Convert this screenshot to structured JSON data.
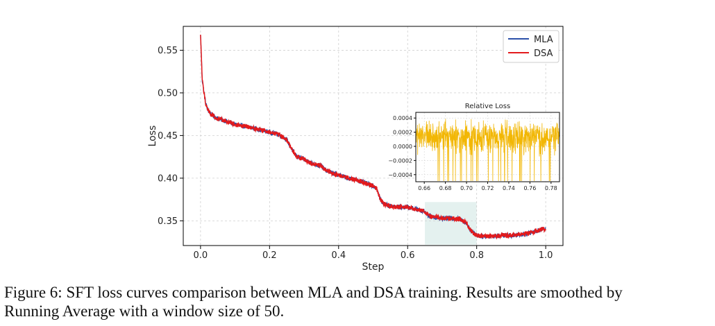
{
  "caption": {
    "line1": "Figure 6: SFT loss curves comparison between MLA and DSA training. Results are smoothed by",
    "line2": "Running Average with a window size of 50."
  },
  "chart_data": [
    {
      "type": "line",
      "title": "",
      "xlabel": "Step",
      "ylabel": "Loss",
      "xlim": [
        -0.05,
        1.05
      ],
      "ylim": [
        0.321,
        0.578
      ],
      "xticks": [
        0.0,
        0.2,
        0.4,
        0.6,
        0.8,
        1.0
      ],
      "xtick_labels": [
        "0.0",
        "0.2",
        "0.4",
        "0.6",
        "0.8",
        "1.0"
      ],
      "yticks": [
        0.35,
        0.4,
        0.45,
        0.5,
        0.55
      ],
      "ytick_labels": [
        "0.35",
        "0.40",
        "0.45",
        "0.50",
        "0.55"
      ],
      "grid": true,
      "legend_position": "top-right",
      "highlight_region": {
        "x": [
          0.65,
          0.8
        ],
        "y": [
          0.322,
          0.372
        ],
        "color": "#e4f1ef"
      },
      "series": [
        {
          "name": "MLA",
          "color": "#2b4fa8",
          "x": [
            0.0,
            0.002,
            0.005,
            0.01,
            0.015,
            0.02,
            0.03,
            0.05,
            0.08,
            0.1,
            0.15,
            0.2,
            0.22,
            0.24,
            0.25,
            0.26,
            0.27,
            0.28,
            0.3,
            0.32,
            0.35,
            0.36,
            0.38,
            0.4,
            0.42,
            0.45,
            0.48,
            0.5,
            0.51,
            0.52,
            0.53,
            0.55,
            0.58,
            0.6,
            0.62,
            0.65,
            0.66,
            0.68,
            0.7,
            0.72,
            0.75,
            0.77,
            0.78,
            0.79,
            0.8,
            0.82,
            0.85,
            0.88,
            0.9,
            0.92,
            0.95,
            0.98,
            1.0
          ],
          "values": [
            0.567,
            0.548,
            0.515,
            0.5,
            0.488,
            0.481,
            0.475,
            0.47,
            0.466,
            0.463,
            0.459,
            0.454,
            0.452,
            0.448,
            0.445,
            0.437,
            0.43,
            0.425,
            0.422,
            0.418,
            0.414,
            0.41,
            0.406,
            0.404,
            0.401,
            0.398,
            0.394,
            0.391,
            0.388,
            0.376,
            0.37,
            0.367,
            0.366,
            0.366,
            0.364,
            0.361,
            0.356,
            0.354,
            0.353,
            0.353,
            0.352,
            0.348,
            0.34,
            0.336,
            0.333,
            0.332,
            0.332,
            0.333,
            0.333,
            0.334,
            0.335,
            0.339,
            0.341
          ]
        },
        {
          "name": "DSA",
          "color": "#e31a1c",
          "x": [
            0.0,
            0.002,
            0.005,
            0.01,
            0.015,
            0.02,
            0.03,
            0.05,
            0.08,
            0.1,
            0.15,
            0.2,
            0.22,
            0.24,
            0.25,
            0.26,
            0.27,
            0.28,
            0.3,
            0.32,
            0.35,
            0.36,
            0.38,
            0.4,
            0.42,
            0.45,
            0.48,
            0.5,
            0.51,
            0.52,
            0.53,
            0.55,
            0.58,
            0.6,
            0.62,
            0.65,
            0.66,
            0.68,
            0.7,
            0.72,
            0.75,
            0.77,
            0.78,
            0.79,
            0.8,
            0.82,
            0.85,
            0.88,
            0.9,
            0.92,
            0.95,
            0.98,
            1.0
          ],
          "values": [
            0.567,
            0.548,
            0.515,
            0.5,
            0.488,
            0.481,
            0.475,
            0.47,
            0.466,
            0.463,
            0.459,
            0.454,
            0.452,
            0.448,
            0.445,
            0.437,
            0.43,
            0.425,
            0.422,
            0.418,
            0.414,
            0.41,
            0.406,
            0.404,
            0.401,
            0.398,
            0.394,
            0.391,
            0.388,
            0.376,
            0.37,
            0.367,
            0.366,
            0.366,
            0.364,
            0.361,
            0.356,
            0.354,
            0.353,
            0.353,
            0.352,
            0.348,
            0.34,
            0.336,
            0.333,
            0.332,
            0.332,
            0.333,
            0.333,
            0.334,
            0.335,
            0.339,
            0.341
          ]
        }
      ],
      "noise_amplitude": 0.0028
    },
    {
      "type": "line",
      "title": "Relative Loss",
      "xlabel": "",
      "ylabel": "",
      "xlim": [
        0.652,
        0.788
      ],
      "ylim": [
        -0.0005,
        0.00048
      ],
      "xticks": [
        0.66,
        0.68,
        0.7,
        0.72,
        0.74,
        0.76,
        0.78
      ],
      "xtick_labels": [
        "0.66",
        "0.68",
        "0.70",
        "0.72",
        "0.74",
        "0.76",
        "0.78"
      ],
      "yticks": [
        0.0004,
        0.0002,
        0.0,
        -0.0002,
        -0.0004
      ],
      "ytick_labels": [
        "0.0004",
        "0.0002",
        "0.0000",
        "−0.0002",
        "−0.0004"
      ],
      "grid": true,
      "series": [
        {
          "name": "Relative Loss",
          "color": "#f2b705",
          "baseline": 0.00013,
          "noise_std": 0.00011,
          "x_range": [
            0.652,
            0.788
          ],
          "points": 700
        }
      ]
    }
  ]
}
